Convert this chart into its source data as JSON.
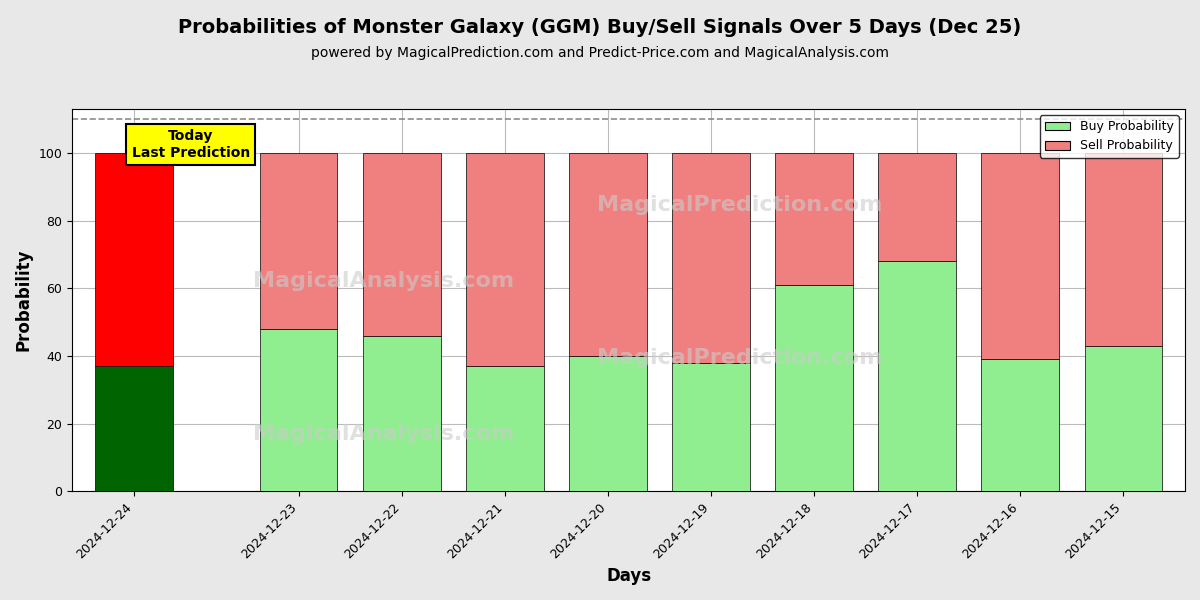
{
  "title": "Probabilities of Monster Galaxy (GGM) Buy/Sell Signals Over 5 Days (Dec 25)",
  "subtitle": "powered by MagicalPrediction.com and Predict-Price.com and MagicalAnalysis.com",
  "xlabel": "Days",
  "ylabel": "Probability",
  "categories": [
    "2024-12-24",
    "2024-12-23",
    "2024-12-22",
    "2024-12-21",
    "2024-12-20",
    "2024-12-19",
    "2024-12-18",
    "2024-12-17",
    "2024-12-16",
    "2024-12-15"
  ],
  "buy_values": [
    37,
    48,
    46,
    37,
    40,
    38,
    61,
    68,
    39,
    43
  ],
  "sell_values": [
    63,
    52,
    54,
    63,
    60,
    62,
    39,
    32,
    61,
    57
  ],
  "today_bar_buy_color": "#006400",
  "today_bar_sell_color": "#FF0000",
  "other_bar_buy_color": "#90EE90",
  "other_bar_sell_color": "#F08080",
  "today_label": "Today\nLast Prediction",
  "today_label_bg": "#FFFF00",
  "legend_buy_label": "Buy Probability",
  "legend_sell_label": "Sell Probability",
  "ylim": [
    0,
    113
  ],
  "yticks": [
    0,
    20,
    40,
    60,
    80,
    100
  ],
  "dashed_line_y": 110,
  "title_fontsize": 14,
  "subtitle_fontsize": 10,
  "axis_label_fontsize": 12,
  "tick_fontsize": 9,
  "bg_color": "#e8e8e8",
  "plot_bg_color": "#ffffff",
  "grid_color": "#bbbbbb"
}
